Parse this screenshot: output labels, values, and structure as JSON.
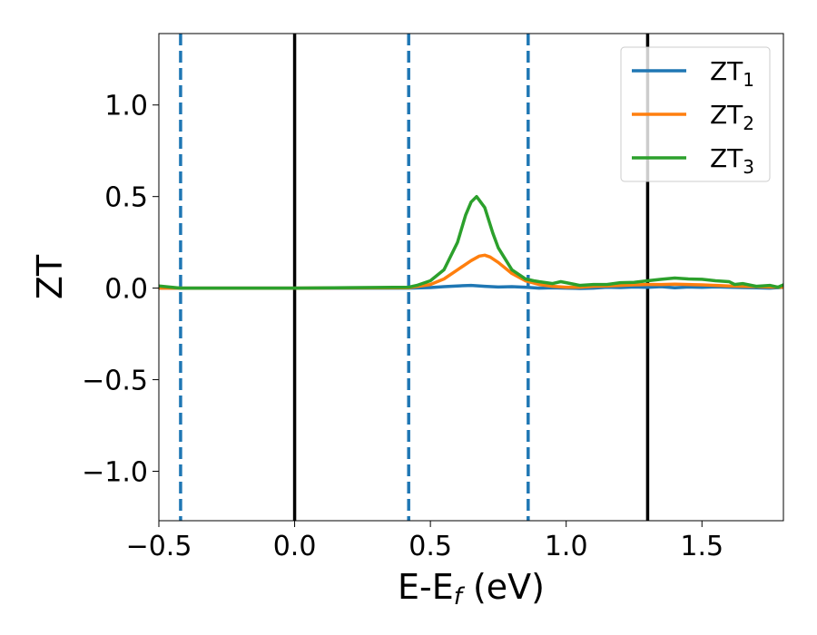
{
  "chart_data": {
    "type": "line",
    "xlabel": {
      "main": "E-E",
      "sub": "f",
      "suffix": " (eV)"
    },
    "ylabel": "ZT",
    "xlim": [
      -0.5,
      1.8
    ],
    "ylim": [
      -1.27,
      1.39
    ],
    "x_ticks": [
      -0.5,
      0.0,
      0.5,
      1.0,
      1.5
    ],
    "x_tick_labels": [
      "−0.5",
      "0.0",
      "0.5",
      "1.0",
      "1.5"
    ],
    "y_ticks": [
      -1.0,
      -0.5,
      0.0,
      0.5,
      1.0
    ],
    "y_tick_labels": [
      "−1.0",
      "−0.5",
      "0.0",
      "0.5",
      "1.0"
    ],
    "grid": false,
    "legend_position": "top-right",
    "vertical_lines": [
      {
        "x": -0.42,
        "style": "dashed",
        "color": "#1f77b4"
      },
      {
        "x": 0.0,
        "style": "solid",
        "color": "#000000"
      },
      {
        "x": 0.42,
        "style": "dashed",
        "color": "#1f77b4"
      },
      {
        "x": 0.86,
        "style": "dashed",
        "color": "#1f77b4"
      },
      {
        "x": 1.3,
        "style": "solid",
        "color": "#000000"
      }
    ],
    "series": [
      {
        "name": "ZT",
        "name_sub": "1",
        "color": "#1f77b4",
        "x": [
          -0.5,
          -0.42,
          0.0,
          0.42,
          0.5,
          0.55,
          0.6,
          0.65,
          0.7,
          0.75,
          0.8,
          0.85,
          0.9,
          0.95,
          1.0,
          1.05,
          1.1,
          1.15,
          1.2,
          1.25,
          1.3,
          1.35,
          1.4,
          1.45,
          1.5,
          1.55,
          1.6,
          1.65,
          1.7,
          1.75,
          1.8
        ],
        "y": [
          0.0,
          0.0,
          0.0,
          0.0,
          0.003,
          0.008,
          0.012,
          0.015,
          0.01,
          0.006,
          0.008,
          0.005,
          0.0,
          0.002,
          0.0,
          -0.002,
          0.0,
          0.005,
          0.003,
          0.006,
          0.004,
          0.008,
          0.002,
          0.006,
          0.004,
          0.007,
          0.005,
          0.003,
          0.002,
          0.0,
          0.004
        ]
      },
      {
        "name": "ZT",
        "name_sub": "2",
        "color": "#ff7f0e",
        "x": [
          -0.5,
          -0.42,
          0.0,
          0.42,
          0.5,
          0.55,
          0.6,
          0.65,
          0.68,
          0.7,
          0.72,
          0.75,
          0.8,
          0.85,
          0.9,
          0.95,
          1.0,
          1.05,
          1.1,
          1.15,
          1.2,
          1.25,
          1.3,
          1.35,
          1.4,
          1.45,
          1.5,
          1.55,
          1.6,
          1.65,
          1.7,
          1.75,
          1.8
        ],
        "y": [
          0.0,
          0.0,
          0.0,
          0.002,
          0.02,
          0.05,
          0.1,
          0.15,
          0.175,
          0.18,
          0.17,
          0.14,
          0.08,
          0.04,
          0.02,
          0.01,
          0.005,
          0.005,
          0.01,
          0.012,
          0.015,
          0.018,
          0.02,
          0.02,
          0.022,
          0.02,
          0.018,
          0.015,
          0.012,
          0.01,
          0.008,
          0.006,
          0.005
        ]
      },
      {
        "name": "ZT",
        "name_sub": "3",
        "color": "#2ca02c",
        "x": [
          -0.5,
          -0.45,
          -0.42,
          0.0,
          0.42,
          0.45,
          0.5,
          0.55,
          0.6,
          0.63,
          0.65,
          0.67,
          0.7,
          0.73,
          0.75,
          0.8,
          0.85,
          0.88,
          0.9,
          0.95,
          0.98,
          1.0,
          1.05,
          1.1,
          1.15,
          1.2,
          1.25,
          1.3,
          1.35,
          1.4,
          1.45,
          1.5,
          1.55,
          1.6,
          1.62,
          1.65,
          1.7,
          1.75,
          1.78,
          1.8
        ],
        "y": [
          0.012,
          0.004,
          0.0,
          0.0,
          0.005,
          0.015,
          0.04,
          0.1,
          0.25,
          0.4,
          0.47,
          0.5,
          0.44,
          0.3,
          0.22,
          0.1,
          0.05,
          0.04,
          0.035,
          0.025,
          0.035,
          0.03,
          0.015,
          0.02,
          0.02,
          0.03,
          0.032,
          0.04,
          0.048,
          0.055,
          0.05,
          0.048,
          0.04,
          0.035,
          0.02,
          0.025,
          0.01,
          0.015,
          0.005,
          0.018
        ]
      }
    ]
  }
}
